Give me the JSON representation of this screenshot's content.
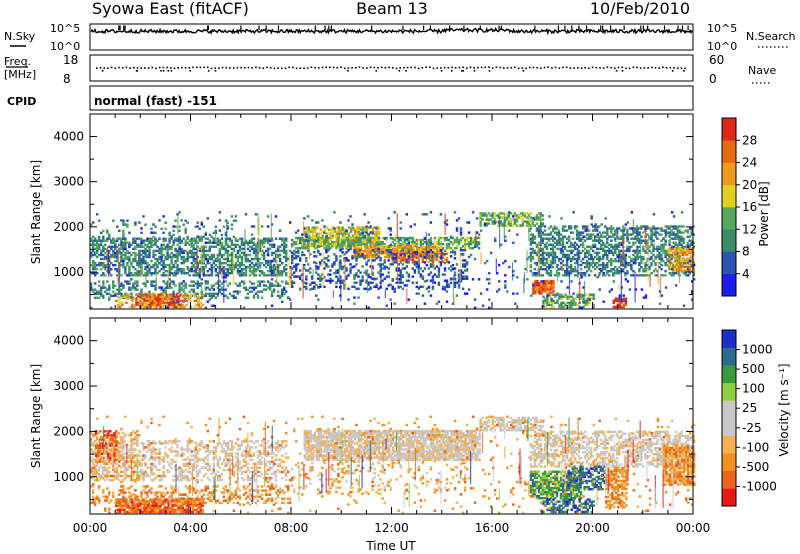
{
  "header": {
    "station": "Syowa East (fitACF)",
    "beam": "Beam 13",
    "date": "10/Feb/2010"
  },
  "top_panels": {
    "nsky_label": "N.Sky",
    "nsky_ticks": [
      "10^5",
      "10^0"
    ],
    "nsearch_label": "N.Search",
    "nsearch_ticks": [
      "10^5",
      "10^0"
    ],
    "freq_label_line1": "Freq.",
    "freq_label_line2": "[MHz]",
    "freq_ticks": [
      "18",
      "8"
    ],
    "nave_label": "Nave",
    "nave_ticks": [
      "60",
      "0"
    ],
    "cpid_label": "CPID",
    "cpid_text": "normal (fast) -151"
  },
  "colors": {
    "power_scale": [
      "#1c1cf0",
      "#2a55b0",
      "#3b8a6a",
      "#54a860",
      "#e0d020",
      "#ee9a20",
      "#e86a10",
      "#e02818"
    ],
    "velocity_scale": [
      "#e81818",
      "#e86218",
      "#f29020",
      "#f5b050",
      "#c8c8c8",
      "#c8c8c8",
      "#8ed040",
      "#3a9a3a",
      "#2e6a8e",
      "#1c2ec8"
    ]
  },
  "chart_data": [
    {
      "type": "heatmap",
      "panel": "power",
      "ylabel": "Slant Range [km]",
      "xlabel": "",
      "xlim": [
        0,
        24
      ],
      "ylim": [
        180,
        4500
      ],
      "yticks": [
        "1000",
        "2000",
        "3000",
        "4000"
      ],
      "colorbar_label": "Power [dB]",
      "colorbar_ticks": [
        "4",
        "8",
        "12",
        "16",
        "20",
        "24",
        "28"
      ],
      "colorbar_range": [
        0,
        32
      ],
      "regions": [
        {
          "t0": 0.0,
          "t1": 7.8,
          "r0": 900,
          "r1": 1750,
          "level": 2,
          "density": 0.55
        },
        {
          "t0": 0.0,
          "t1": 6.0,
          "r0": 1750,
          "r1": 2150,
          "level": 2,
          "density": 0.12
        },
        {
          "t0": 0.0,
          "t1": 8.0,
          "r0": 400,
          "r1": 800,
          "level": 2,
          "density": 0.35
        },
        {
          "t0": 1.8,
          "t1": 3.6,
          "r0": 200,
          "r1": 480,
          "level": 7,
          "density": 0.85
        },
        {
          "t0": 1.0,
          "t1": 4.5,
          "r0": 200,
          "r1": 500,
          "level": 5,
          "density": 0.35
        },
        {
          "t0": 8.5,
          "t1": 11.5,
          "r0": 1550,
          "r1": 2000,
          "level": 4,
          "density": 0.75
        },
        {
          "t0": 8.0,
          "t1": 15.5,
          "r0": 1500,
          "r1": 1750,
          "level": 3,
          "density": 0.6
        },
        {
          "t0": 10.5,
          "t1": 14.0,
          "r0": 1300,
          "r1": 1550,
          "level": 5,
          "density": 0.8
        },
        {
          "t0": 12.0,
          "t1": 14.2,
          "r0": 1200,
          "r1": 1420,
          "level": 6,
          "density": 0.55
        },
        {
          "t0": 8.0,
          "t1": 15.0,
          "r0": 600,
          "r1": 1500,
          "level": 1,
          "density": 0.25
        },
        {
          "t0": 15.5,
          "t1": 18.0,
          "r0": 2000,
          "r1": 2300,
          "level": 3,
          "density": 0.6
        },
        {
          "t0": 17.5,
          "t1": 24.0,
          "r0": 900,
          "r1": 2000,
          "level": 2,
          "density": 0.5
        },
        {
          "t0": 17.6,
          "t1": 18.4,
          "r0": 500,
          "r1": 800,
          "level": 6,
          "density": 0.85
        },
        {
          "t0": 18.0,
          "t1": 20.0,
          "r0": 200,
          "r1": 500,
          "level": 3,
          "density": 0.6
        },
        {
          "t0": 20.8,
          "t1": 21.3,
          "r0": 200,
          "r1": 420,
          "level": 7,
          "density": 0.9
        },
        {
          "t0": 23.0,
          "t1": 24.0,
          "r0": 1000,
          "r1": 1500,
          "level": 5,
          "density": 0.65
        },
        {
          "t0": 0.0,
          "t1": 24.0,
          "r0": 180,
          "r1": 2300,
          "level": 1,
          "density": 0.04
        }
      ]
    },
    {
      "type": "heatmap",
      "panel": "velocity",
      "ylabel": "Slant Range [km]",
      "xlabel": "Time UT",
      "xlim": [
        0,
        24
      ],
      "ylim": [
        180,
        4500
      ],
      "xticks": [
        "00:00",
        "04:00",
        "08:00",
        "12:00",
        "16:00",
        "20:00",
        "00:00"
      ],
      "yticks": [
        "1000",
        "2000",
        "3000",
        "4000"
      ],
      "colorbar_label": "Velocity [m s⁻¹]",
      "colorbar_ticks": [
        "-1000",
        "-500",
        "-100",
        "-25",
        "25",
        "100",
        "500",
        "1000"
      ],
      "colorbar_range": [
        -1500,
        1500
      ],
      "regions": [
        {
          "t0": 0.0,
          "t1": 7.8,
          "r0": 900,
          "r1": 1800,
          "level": 4,
          "density": 0.35
        },
        {
          "t0": 0.0,
          "t1": 2.0,
          "r0": 900,
          "r1": 2000,
          "level": 3,
          "density": 0.3
        },
        {
          "t0": 0.2,
          "t1": 1.0,
          "r0": 1300,
          "r1": 2000,
          "level": 1,
          "density": 0.5
        },
        {
          "t0": 1.0,
          "t1": 4.5,
          "r0": 200,
          "r1": 500,
          "level": 1,
          "density": 0.85
        },
        {
          "t0": 0.0,
          "t1": 8.0,
          "r0": 400,
          "r1": 800,
          "level": 2,
          "density": 0.3
        },
        {
          "t0": 8.5,
          "t1": 15.5,
          "r0": 1350,
          "r1": 2000,
          "level": 4,
          "density": 0.8
        },
        {
          "t0": 8.0,
          "t1": 15.0,
          "r0": 600,
          "r1": 1350,
          "level": 3,
          "density": 0.12
        },
        {
          "t0": 15.5,
          "t1": 18.0,
          "r0": 2000,
          "r1": 2300,
          "level": 4,
          "density": 0.6
        },
        {
          "t0": 17.5,
          "t1": 24.0,
          "r0": 1200,
          "r1": 2000,
          "level": 4,
          "density": 0.5
        },
        {
          "t0": 17.5,
          "t1": 19.5,
          "r0": 500,
          "r1": 1100,
          "level": 7,
          "density": 0.75
        },
        {
          "t0": 19.0,
          "t1": 20.5,
          "r0": 700,
          "r1": 1200,
          "level": 8,
          "density": 0.55
        },
        {
          "t0": 18.0,
          "t1": 20.0,
          "r0": 200,
          "r1": 500,
          "level": 8,
          "density": 0.55
        },
        {
          "t0": 20.5,
          "t1": 21.3,
          "r0": 300,
          "r1": 1200,
          "level": 2,
          "density": 0.6
        },
        {
          "t0": 22.8,
          "t1": 24.0,
          "r0": 800,
          "r1": 1700,
          "level": 2,
          "density": 0.7
        },
        {
          "t0": 0.0,
          "t1": 24.0,
          "r0": 180,
          "r1": 2300,
          "level": 2,
          "density": 0.04
        }
      ]
    }
  ]
}
